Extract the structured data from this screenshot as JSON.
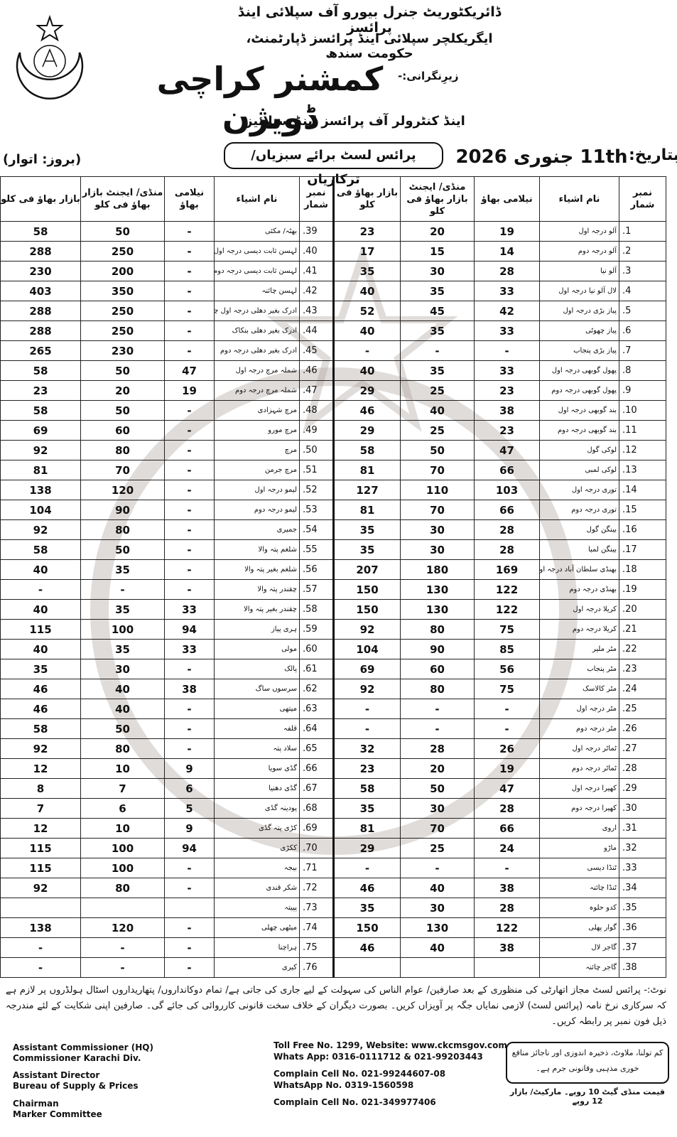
{
  "header": {
    "line1": "ڈائریکٹوریٹ جنرل بیورو آف سپلائی اینڈ پرائسز",
    "line2": "ایگریکلچر سپلائی اینڈ پرائسز ڈپارٹمنٹ، حکومت سندھ",
    "supervision": "زیرِنگرانی:-",
    "title": "کمشنر کراچی ڈویژن",
    "subtitle": "اینڈ کنٹرولر آف پرائسز اینڈ سپلائیز",
    "list_title": "پرائس لسٹ برائے سبزیاں/ ترکاریاں",
    "date_label": "بتاریخ:",
    "date": "11th جنوری 2026",
    "day": "(بروز: اتوار)"
  },
  "table": {
    "headers": [
      "نمبر شمار",
      "نام اشیاء",
      "نیلامی بھاؤ",
      "منڈی/ ایجنٹ بازار بھاؤ فی کلو",
      "بازار بھاؤ فی کلو"
    ],
    "right_rows": [
      [
        "1.",
        "آلو درجہ اول",
        19,
        20,
        23
      ],
      [
        "2.",
        "آلو درجہ دوم",
        14,
        15,
        17
      ],
      [
        "3.",
        "آلو نیا",
        28,
        30,
        35
      ],
      [
        "4.",
        "لال آلو نیا درجہ اول",
        33,
        35,
        40
      ],
      [
        "5.",
        "پیاز بڑی درجہ اول",
        42,
        45,
        52
      ],
      [
        "6.",
        "پیاز چھوٹی",
        33,
        35,
        40
      ],
      [
        "7.",
        "پیاز بڑی پنجاب",
        "-",
        "-",
        "-"
      ],
      [
        "8.",
        "پھول گوبھی درجہ اول",
        33,
        35,
        40
      ],
      [
        "9.",
        "پھول گوبھی درجہ دوم",
        23,
        25,
        29
      ],
      [
        "10.",
        "بند گوبھی درجہ اول",
        38,
        40,
        46
      ],
      [
        "11.",
        "بند گوبھی درجہ دوم",
        23,
        25,
        29
      ],
      [
        "12.",
        "لوکی گول",
        47,
        50,
        58
      ],
      [
        "13.",
        "لوکی لمبی",
        66,
        70,
        81
      ],
      [
        "14.",
        "توری درجہ اول",
        103,
        110,
        127
      ],
      [
        "15.",
        "توری درجہ دوم",
        66,
        70,
        81
      ],
      [
        "16.",
        "بینگن گول",
        28,
        30,
        35
      ],
      [
        "17.",
        "بینگن لمبا",
        28,
        30,
        35
      ],
      [
        "18.",
        "بھنڈی سلطان آباد درجہ اول",
        169,
        180,
        207
      ],
      [
        "19.",
        "بھنڈی درجہ دوم",
        122,
        130,
        150
      ],
      [
        "20.",
        "کریلا درجہ اول",
        122,
        130,
        150
      ],
      [
        "21.",
        "کریلا درجہ دوم",
        75,
        80,
        92
      ],
      [
        "22.",
        "مٹر ملیر",
        85,
        90,
        104
      ],
      [
        "23.",
        "مٹر پنجاب",
        56,
        60,
        69
      ],
      [
        "24.",
        "مٹر کالاسک",
        75,
        80,
        92
      ],
      [
        "25.",
        "مٹر درجہ اول",
        "-",
        "-",
        "-"
      ],
      [
        "26.",
        "مٹر درجہ دوم",
        "-",
        "-",
        "-"
      ],
      [
        "27.",
        "ٹماٹر درجہ اول",
        26,
        28,
        32
      ],
      [
        "28.",
        "ٹماٹر درجہ دوم",
        19,
        20,
        23
      ],
      [
        "29.",
        "کھیرا درجہ اول",
        47,
        50,
        58
      ],
      [
        "30.",
        "کھیرا درجہ دوم",
        28,
        30,
        35
      ],
      [
        "31.",
        "اروی",
        66,
        70,
        81
      ],
      [
        "32.",
        "ماڑو",
        24,
        25,
        29
      ],
      [
        "33.",
        "ٹنڈا دیسی",
        "-",
        "-",
        "-"
      ],
      [
        "34.",
        "ٹنڈا چائنہ",
        38,
        40,
        46
      ],
      [
        "35.",
        "کدو حلوہ",
        28,
        30,
        35
      ],
      [
        "36.",
        "گوار پھلی",
        122,
        130,
        150
      ],
      [
        "37.",
        "گاجر لال",
        38,
        40,
        46
      ],
      [
        "38.",
        "گاجر چائنہ"
      ]
    ],
    "left_rows": [
      [
        "39.",
        "بھٹہ/ مکئی",
        "-",
        50,
        58
      ],
      [
        "40.",
        "لہسن ثابت دیسی درجہ اول",
        "-",
        250,
        288
      ],
      [
        "41.",
        "لہسن ثابت دیسی درجہ دوم",
        "-",
        200,
        230
      ],
      [
        "42.",
        "لہسن چائنہ",
        "-",
        350,
        403
      ],
      [
        "43.",
        "ادرک بغیر دھلی درجہ اول چائنہ",
        "-",
        250,
        288
      ],
      [
        "44.",
        "ادرک بغیر دھلی بنکاک",
        "-",
        250,
        288
      ],
      [
        "45.",
        "ادرک بغیر دھلی درجہ دوم",
        "-",
        230,
        265
      ],
      [
        "46.",
        "شملہ مرچ درجہ اول",
        47,
        50,
        58
      ],
      [
        "47.",
        "شملہ مرچ درجہ دوم",
        19,
        20,
        23
      ],
      [
        "48.",
        "مرچ شہزادی",
        "-",
        50,
        58
      ],
      [
        "49.",
        "مرچ مورو",
        "-",
        60,
        69
      ],
      [
        "50.",
        "مرچ",
        "-",
        80,
        92
      ],
      [
        "51.",
        "مرچ جرمن",
        "-",
        70,
        81
      ],
      [
        "52.",
        "لیمو درجہ اول",
        "-",
        120,
        138
      ],
      [
        "53.",
        "لیمو درجہ دوم",
        "-",
        90,
        104
      ],
      [
        "54.",
        "جمیری",
        "-",
        80,
        92
      ],
      [
        "55.",
        "شلغم پتہ والا",
        "-",
        50,
        58
      ],
      [
        "56.",
        "شلغم بغیر پتہ والا",
        "-",
        35,
        40
      ],
      [
        "57.",
        "چقندر پتہ والا",
        "-",
        "-",
        "-"
      ],
      [
        "58.",
        "چقندر بغیر پتہ والا",
        33,
        35,
        40
      ],
      [
        "59.",
        "ہری پیاز",
        94,
        100,
        115
      ],
      [
        "60.",
        "مولی",
        33,
        35,
        40
      ],
      [
        "61.",
        "پالک",
        "-",
        30,
        35
      ],
      [
        "62.",
        "سرسوں ساگ",
        38,
        40,
        46
      ],
      [
        "63.",
        "میتھی",
        "-",
        40,
        46
      ],
      [
        "64.",
        "قلفہ",
        "-",
        50,
        58
      ],
      [
        "65.",
        "سلاد پتہ",
        "-",
        80,
        92
      ],
      [
        "66.",
        "گڈی سویا",
        9,
        10,
        12
      ],
      [
        "67.",
        "گڈی دھنیا",
        6,
        7,
        8
      ],
      [
        "68.",
        "پودینہ گڈی",
        5,
        6,
        7
      ],
      [
        "69.",
        "کڑی پتہ گڈی",
        9,
        10,
        12
      ],
      [
        "70.",
        "ککڑی",
        94,
        100,
        115
      ],
      [
        "71.",
        "بیجہ",
        "-",
        100,
        115
      ],
      [
        "72.",
        "شکر قندی",
        "-",
        80,
        92
      ],
      [
        "73.",
        "پپیتہ"
      ],
      [
        "74.",
        "میٹھی چھلی",
        "-",
        120,
        138
      ],
      [
        "75.",
        "ہراچنا",
        "-",
        "-",
        "-"
      ],
      [
        "76.",
        "کیری",
        "-",
        "-",
        "-"
      ]
    ]
  },
  "note": "نوٹ:- پرائس لسٹ مجاز اتھارٹی کی منظوری کے بعد صارفین/ عوام الناس کی سہولت کے لیے جاری کی جاتی ہے/ تمام دوکانداروں/ پتھاریداروں اسٹال ہولڈروں پر لازم ہے کہ سرکاری نرخ نامہ (پرائس لسٹ) لازمی نمایاں جگہ پر آویزاں کریں۔ بصورت دیگران کے خلاف سخت قانونی کارروائی کی جائے گی۔ صارفین اپنی شکایت کے لئے مندرجہ ذیل فون نمبر پر رابطہ کریں۔",
  "signatories": [
    "Assistant Commissioner (HQ)",
    "Commissioner Karachi Div.",
    "Assistant Director",
    "Bureau of Supply & Prices",
    "Chairman",
    "Marker Committee"
  ],
  "contacts": [
    "Toll Free No. 1299, Website: www.ckcmsgov.com",
    "Whats App: 0316-0111712 & 021-99203443",
    "Complain Cell No. 021-99244607-08",
    "WhatsApp No. 0319-1560598",
    "Complain Cell No. 021-349977406"
  ],
  "warning": "کم تولنا، ملاوٹ، ذخیرہ اندوزی اور ناجائز منافع خوری مذہبی وقانونی جرم ہے۔",
  "fee": "قیمت منڈی گیٹ 10 روپے۔ مارکیٹ/ بازار 12 روپے"
}
